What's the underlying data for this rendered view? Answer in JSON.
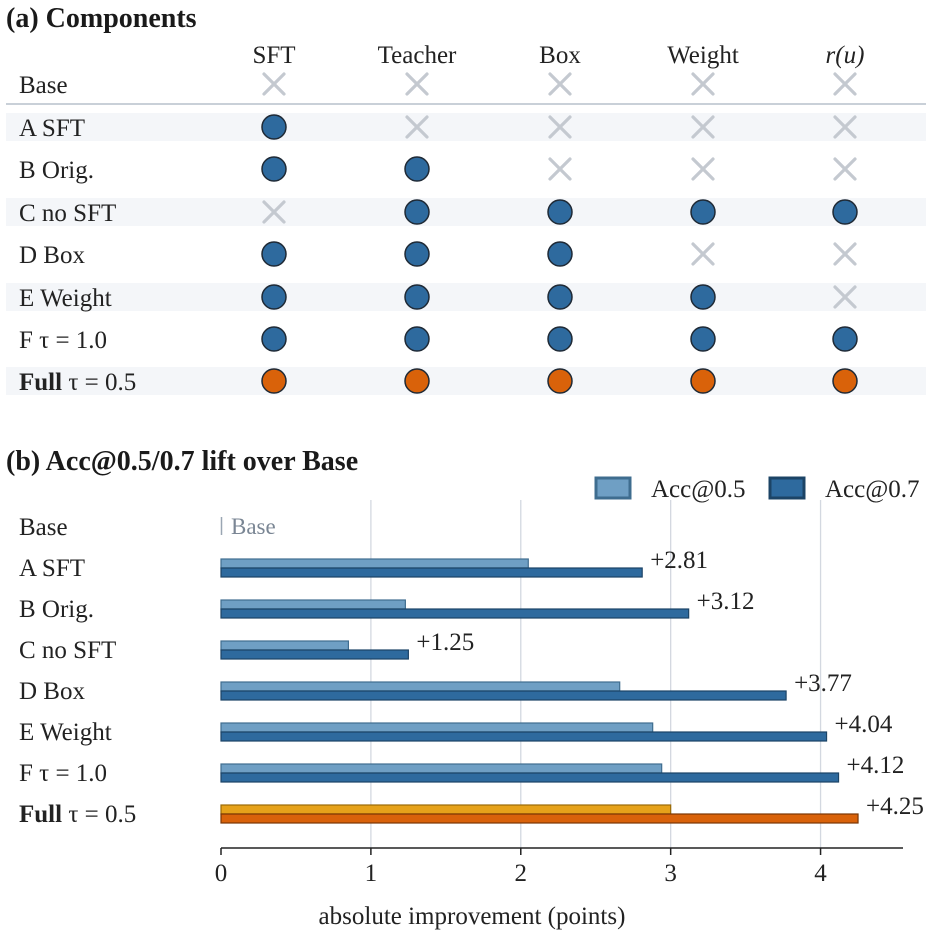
{
  "colors": {
    "on": "#2e6a9e",
    "full": "#d9620a",
    "off": "#c4c9d0",
    "stripe": "#f4f6f9",
    "acc05": "#6f9fc4",
    "acc07": "#2e6a9e",
    "full05": "#e6a21a",
    "full07": "#d9620a",
    "grid": "#d3d8e0"
  },
  "panel_a": {
    "title": "(a) Components",
    "columns": [
      "SFT",
      "Teacher",
      "Box",
      "Weight",
      "r(u)"
    ],
    "rows": [
      {
        "label": "Base",
        "bold": "",
        "cells": [
          0,
          0,
          0,
          0,
          0
        ]
      },
      {
        "label": "A SFT",
        "bold": "",
        "cells": [
          1,
          0,
          0,
          0,
          0
        ]
      },
      {
        "label": "B Orig.",
        "bold": "",
        "cells": [
          1,
          1,
          0,
          0,
          0
        ]
      },
      {
        "label": "C no SFT",
        "bold": "",
        "cells": [
          0,
          1,
          1,
          1,
          1
        ]
      },
      {
        "label": "D Box",
        "bold": "",
        "cells": [
          1,
          1,
          1,
          0,
          0
        ]
      },
      {
        "label": "E Weight",
        "bold": "",
        "cells": [
          1,
          1,
          1,
          1,
          0
        ]
      },
      {
        "label": "F τ = 1.0",
        "bold": "",
        "cells": [
          1,
          1,
          1,
          1,
          1
        ]
      },
      {
        "label": " τ = 0.5",
        "bold": "Full",
        "cells": [
          2,
          2,
          2,
          2,
          2
        ]
      }
    ]
  },
  "panel_b": {
    "title": "(b) Acc@0.5/0.7 lift over Base",
    "base_marker": "Base"
  },
  "chart_data": {
    "type": "bar",
    "orientation": "horizontal",
    "categories": [
      "Base",
      "A SFT",
      "B Orig.",
      "C no SFT",
      "D Box",
      "E Weight",
      "F τ = 1.0",
      "Full τ = 0.5"
    ],
    "series": [
      {
        "name": "Acc@0.5",
        "values": [
          0,
          2.05,
          1.23,
          0.85,
          2.66,
          2.88,
          2.94,
          3.0
        ]
      },
      {
        "name": "Acc@0.7",
        "values": [
          0,
          2.81,
          3.12,
          1.25,
          3.77,
          4.04,
          4.12,
          4.25
        ]
      }
    ],
    "data_labels": [
      "",
      "+2.81",
      "+3.12",
      "+1.25",
      "+3.77",
      "+4.04",
      "+4.12",
      "+4.25"
    ],
    "xlabel": "absolute improvement (points)",
    "xlim": [
      0,
      4.55
    ],
    "xticks": [
      0,
      1,
      2,
      3,
      4
    ],
    "grid": "vertical",
    "legend": "top-right",
    "highlight": "Full τ = 0.5"
  }
}
